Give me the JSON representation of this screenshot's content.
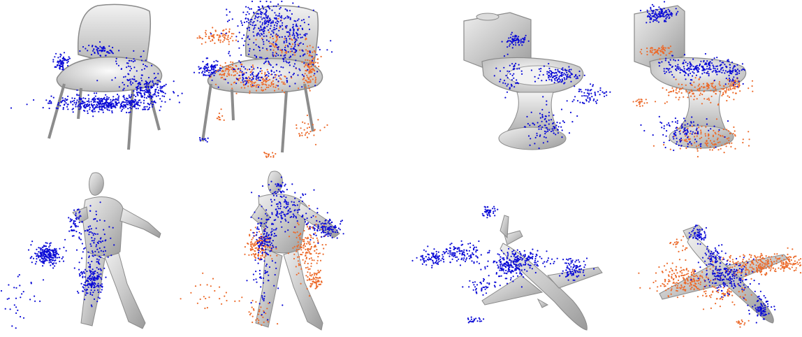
{
  "figure": {
    "background": "#ffffff",
    "colors": {
      "shape_fill": "#c4c4c4",
      "shape_light": "#e6e6e6",
      "shape_edge": "#8a8a8a",
      "primary_points": "#0b0bd6",
      "secondary_points": "#ec6a2a"
    },
    "panels": [
      {
        "row": 1,
        "object": "chair",
        "variant": "blue-points",
        "icon": "chair-icon"
      },
      {
        "row": 1,
        "object": "chair",
        "variant": "blue-orange-points",
        "icon": "chair-icon"
      },
      {
        "row": 1,
        "object": "toilet",
        "variant": "blue-points",
        "icon": "toilet-icon"
      },
      {
        "row": 1,
        "object": "toilet",
        "variant": "blue-orange-points",
        "icon": "toilet-icon"
      },
      {
        "row": 2,
        "object": "human",
        "variant": "blue-points",
        "icon": "human-icon"
      },
      {
        "row": 2,
        "object": "human",
        "variant": "blue-orange-points",
        "icon": "human-icon"
      },
      {
        "row": 2,
        "object": "airplane",
        "variant": "blue-points",
        "icon": "airplane-icon"
      },
      {
        "row": 2,
        "object": "airplane",
        "variant": "blue-orange-points",
        "icon": "airplane-icon"
      }
    ]
  }
}
